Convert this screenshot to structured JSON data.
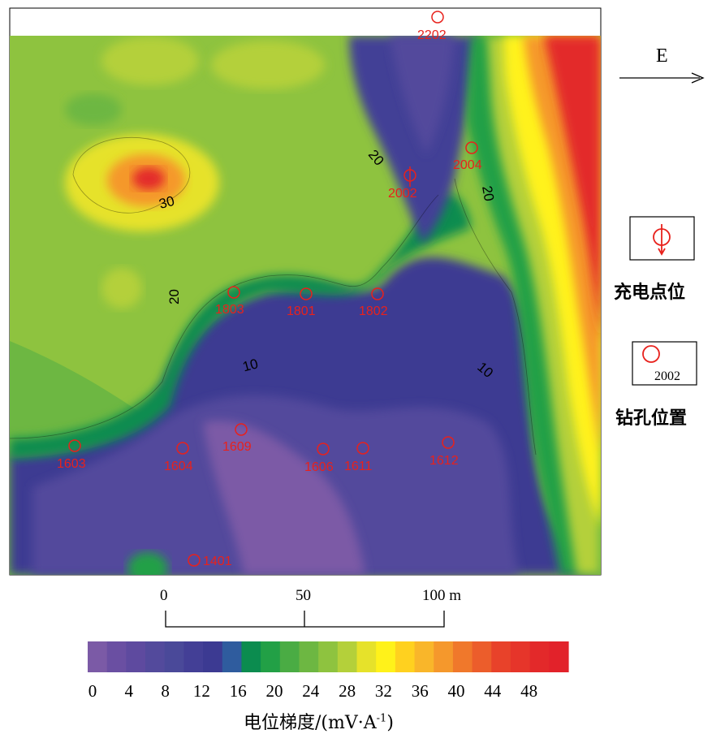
{
  "north_arrow": {
    "label": "E"
  },
  "legend": {
    "charge_point_label": "充电点位",
    "borehole_label": "钻孔位置",
    "borehole_sample": "2002"
  },
  "scale_bar": {
    "labels": [
      "0",
      "50",
      "100 m"
    ]
  },
  "colorbar": {
    "ticks": [
      "0",
      "4",
      "8",
      "12",
      "16",
      "20",
      "24",
      "28",
      "32",
      "36",
      "40",
      "44",
      "48"
    ],
    "colors": [
      "#7b5aa6",
      "#6a4fa2",
      "#5e4a9f",
      "#534a9c",
      "#4a4999",
      "#433f96",
      "#3c3a92",
      "#2f5c9e",
      "#0b8c4f",
      "#22a046",
      "#4aac44",
      "#6db742",
      "#8ec33f",
      "#b4d03a",
      "#e6e22a",
      "#fff21a",
      "#ffd11f",
      "#f9b62a",
      "#f5982c",
      "#f0782b",
      "#ec5d2b",
      "#e8422a",
      "#e6352a",
      "#e3292a",
      "#e2222a"
    ],
    "unit": "电位梯度/(mV·A",
    "unit_sup": "-1",
    "unit_close": ")"
  },
  "map": {
    "boreholes": [
      {
        "id": "2202"
      },
      {
        "id": "2004"
      },
      {
        "id": "2002"
      },
      {
        "id": "1803"
      },
      {
        "id": "1801"
      },
      {
        "id": "1802"
      },
      {
        "id": "1603"
      },
      {
        "id": "1604"
      },
      {
        "id": "1609"
      },
      {
        "id": "1606"
      },
      {
        "id": "1611"
      },
      {
        "id": "1612"
      },
      {
        "id": "1401"
      }
    ],
    "contour_labels": [
      "30",
      "20",
      "20",
      "20",
      "10",
      "10"
    ]
  }
}
